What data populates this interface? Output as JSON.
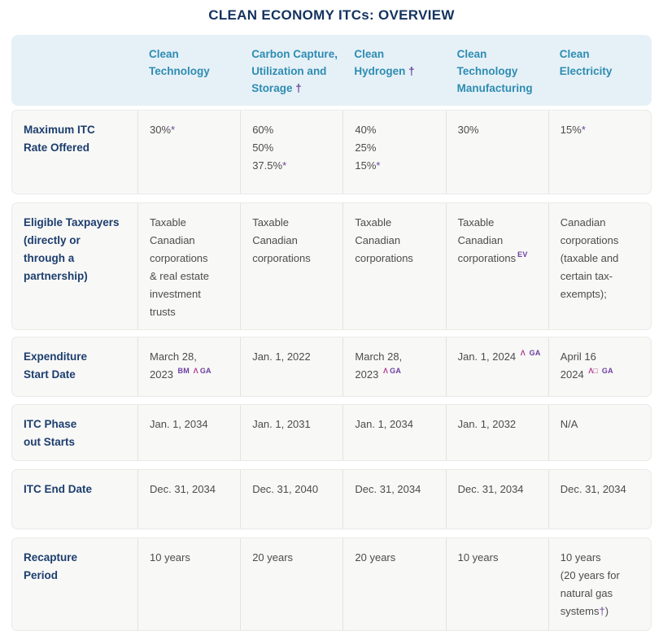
{
  "title": "CLEAN ECONOMY ITCs: OVERVIEW",
  "colors": {
    "title_navy": "#14335f",
    "header_teal": "#2e8cb2",
    "header_bg": "#e6f1f7",
    "row_bg": "#f8f8f7",
    "row_border": "#eaeae8",
    "divider": "#e2e2e0",
    "label_navy": "#1c3e6d",
    "cell_gray": "#4c4c4c",
    "footnote_purple": "#6b3fa0",
    "footnote_magenta": "#b5368f"
  },
  "table": {
    "column_headers": [
      {
        "lines": [
          [
            "Clean"
          ],
          [
            "Technology"
          ]
        ]
      },
      {
        "lines": [
          [
            "Carbon Capture,"
          ],
          [
            "Utilization and"
          ],
          [
            "Storage ",
            {
              "t": "†",
              "s": "mark"
            }
          ]
        ]
      },
      {
        "lines": [
          [
            "Clean"
          ],
          [
            "Hydrogen ",
            {
              "t": "†",
              "s": "mark"
            }
          ]
        ]
      },
      {
        "lines": [
          [
            "Clean"
          ],
          [
            "Technology"
          ],
          [
            "Manufacturing"
          ]
        ]
      },
      {
        "lines": [
          [
            "Clean"
          ],
          [
            "Electricity"
          ]
        ]
      }
    ],
    "rows": [
      {
        "label": [
          "Maximum ITC",
          "Rate Offered"
        ],
        "cells": [
          {
            "lines": [
              [
                "30%",
                {
                  "t": "*",
                  "s": "mark"
                }
              ]
            ]
          },
          {
            "lines": [
              [
                "60%"
              ],
              [
                "50%"
              ],
              [
                "37.5%",
                {
                  "t": "*",
                  "s": "mark"
                }
              ]
            ]
          },
          {
            "lines": [
              [
                "40%"
              ],
              [
                "25%"
              ],
              [
                "15%",
                {
                  "t": "*",
                  "s": "mark"
                }
              ]
            ]
          },
          {
            "lines": [
              [
                "30%"
              ]
            ]
          },
          {
            "lines": [
              [
                "15%",
                {
                  "t": "*",
                  "s": "mark"
                }
              ]
            ]
          }
        ]
      },
      {
        "label": [
          "Eligible Taxpayers",
          "(directly or",
          "through a",
          "partnership)"
        ],
        "cells": [
          {
            "lines": [
              [
                "Taxable"
              ],
              [
                "Canadian"
              ],
              [
                "corporations"
              ],
              [
                "& real estate"
              ],
              [
                "investment"
              ],
              [
                "trusts"
              ]
            ]
          },
          {
            "lines": [
              [
                "Taxable"
              ],
              [
                "Canadian"
              ],
              [
                "corporations"
              ]
            ]
          },
          {
            "lines": [
              [
                "Taxable"
              ],
              [
                "Canadian"
              ],
              [
                "corporations"
              ]
            ]
          },
          {
            "lines": [
              [
                "Taxable"
              ],
              [
                "Canadian"
              ],
              [
                "corporations",
                {
                  "t": "EV",
                  "s": "sup-p"
                }
              ]
            ]
          },
          {
            "lines": [
              [
                "Canadian"
              ],
              [
                "corporations"
              ],
              [
                "(taxable and"
              ],
              [
                "certain tax-"
              ],
              [
                "exempts);"
              ]
            ]
          }
        ]
      },
      {
        "label": [
          "Expenditure",
          "Start Date"
        ],
        "cells": [
          {
            "lines": [
              [
                "March 28,"
              ],
              [
                "2023 ",
                {
                  "t": "BM ",
                  "s": "sup-p"
                },
                {
                  "t": "Λ",
                  "s": "sup-m"
                },
                {
                  "t": "GA",
                  "s": "sup-p"
                }
              ]
            ]
          },
          {
            "lines": [
              [
                "Jan. 1, 2022"
              ]
            ]
          },
          {
            "lines": [
              [
                "March 28,"
              ],
              [
                "2023 ",
                {
                  "t": "Λ",
                  "s": "sup-m"
                },
                {
                  "t": "GA",
                  "s": "sup-p"
                }
              ]
            ]
          },
          {
            "lines": [
              [
                "Jan. 1, 2024 ",
                {
                  "t": "Λ",
                  "s": "sup-m"
                },
                {
                  "t": " GA",
                  "s": "sup-p"
                }
              ]
            ]
          },
          {
            "lines": [
              [
                "April 16"
              ],
              [
                "2024 ",
                {
                  "t": "Λ□",
                  "s": "sup-m"
                },
                {
                  "t": " GA",
                  "s": "sup-p"
                }
              ]
            ]
          }
        ]
      },
      {
        "label": [
          "ITC Phase",
          "out Starts"
        ],
        "cells": [
          {
            "lines": [
              [
                "Jan. 1, 2034"
              ]
            ]
          },
          {
            "lines": [
              [
                "Jan. 1, 2031"
              ]
            ]
          },
          {
            "lines": [
              [
                "Jan. 1, 2034"
              ]
            ]
          },
          {
            "lines": [
              [
                "Jan. 1, 2032"
              ]
            ]
          },
          {
            "lines": [
              [
                "N/A"
              ]
            ]
          }
        ]
      },
      {
        "label": [
          "ITC End Date"
        ],
        "cells": [
          {
            "lines": [
              [
                "Dec. 31, 2034"
              ]
            ]
          },
          {
            "lines": [
              [
                "Dec. 31, 2040"
              ]
            ]
          },
          {
            "lines": [
              [
                "Dec. 31, 2034"
              ]
            ]
          },
          {
            "lines": [
              [
                "Dec. 31, 2034"
              ]
            ]
          },
          {
            "lines": [
              [
                "Dec. 31, 2034"
              ]
            ]
          }
        ]
      },
      {
        "label": [
          "Recapture",
          "Period"
        ],
        "cells": [
          {
            "lines": [
              [
                "10 years"
              ]
            ]
          },
          {
            "lines": [
              [
                "20 years"
              ]
            ]
          },
          {
            "lines": [
              [
                "20 years"
              ]
            ]
          },
          {
            "lines": [
              [
                "10 years"
              ]
            ]
          },
          {
            "lines": [
              [
                "10 years"
              ],
              [
                "(20 years for"
              ],
              [
                "natural gas"
              ],
              [
                "systems",
                {
                  "t": "†",
                  "s": "mark"
                },
                ")"
              ]
            ]
          }
        ]
      }
    ]
  }
}
